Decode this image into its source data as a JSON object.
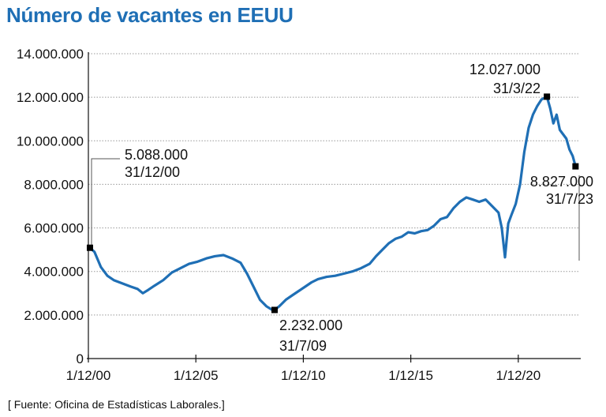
{
  "title": "Número de vacantes en EEUU",
  "source": "[ Fuente: Oficina de Estadísticas Laborales.]",
  "colors": {
    "title": "#1f6fb5",
    "line": "#1f6fb5",
    "grid": "#999999"
  },
  "chart_data": {
    "type": "line",
    "ylim": [
      0,
      14000000
    ],
    "grid": true,
    "yticks": [
      {
        "value": 0,
        "label": "0"
      },
      {
        "value": 2000000,
        "label": "2.000.000"
      },
      {
        "value": 4000000,
        "label": "4.000.000"
      },
      {
        "value": 6000000,
        "label": "6.000.000"
      },
      {
        "value": 8000000,
        "label": "8.000.000"
      },
      {
        "value": 10000000,
        "label": "10.000.000"
      },
      {
        "value": 12000000,
        "label": "12.000.000"
      },
      {
        "value": 14000000,
        "label": "14.000.000"
      }
    ],
    "xticks": [
      {
        "value": 2000.917,
        "label": "1/12/00"
      },
      {
        "value": 2005.917,
        "label": "1/12/05"
      },
      {
        "value": 2010.917,
        "label": "1/12/10"
      },
      {
        "value": 2015.917,
        "label": "1/12/15"
      },
      {
        "value": 2020.917,
        "label": "1/12/20"
      }
    ],
    "series": [
      {
        "x": [
          2000.99,
          2001.2,
          2001.5,
          2001.8,
          2002.1,
          2002.5,
          2002.9,
          2003.2,
          2003.45,
          2003.7,
          2004.0,
          2004.4,
          2004.8,
          2005.2,
          2005.6,
          2006.0,
          2006.4,
          2006.8,
          2007.2,
          2007.6,
          2008.0,
          2008.3,
          2008.6,
          2008.9,
          2009.2,
          2009.45,
          2009.58,
          2009.8,
          2010.1,
          2010.4,
          2010.7,
          2011.0,
          2011.3,
          2011.6,
          2012.0,
          2012.4,
          2012.8,
          2013.2,
          2013.6,
          2014.0,
          2014.3,
          2014.6,
          2014.9,
          2015.2,
          2015.5,
          2015.8,
          2016.1,
          2016.4,
          2016.7,
          2017.0,
          2017.3,
          2017.6,
          2017.9,
          2018.2,
          2018.5,
          2018.8,
          2019.1,
          2019.4,
          2019.7,
          2020.0,
          2020.15,
          2020.3,
          2020.45,
          2020.6,
          2020.8,
          2021.0,
          2021.2,
          2021.4,
          2021.6,
          2021.8,
          2022.0,
          2022.25,
          2022.4,
          2022.55,
          2022.7,
          2022.85,
          2023.0,
          2023.15,
          2023.3,
          2023.45,
          2023.58
        ],
        "y": [
          5088000,
          4900000,
          4200000,
          3800000,
          3600000,
          3450000,
          3300000,
          3200000,
          3000000,
          3150000,
          3350000,
          3600000,
          3950000,
          4150000,
          4350000,
          4450000,
          4600000,
          4700000,
          4750000,
          4600000,
          4400000,
          3900000,
          3300000,
          2700000,
          2400000,
          2250000,
          2232000,
          2400000,
          2700000,
          2900000,
          3100000,
          3300000,
          3500000,
          3650000,
          3750000,
          3800000,
          3900000,
          4000000,
          4150000,
          4350000,
          4700000,
          5000000,
          5300000,
          5500000,
          5600000,
          5800000,
          5750000,
          5850000,
          5900000,
          6100000,
          6400000,
          6500000,
          6900000,
          7200000,
          7400000,
          7300000,
          7200000,
          7300000,
          7000000,
          6700000,
          6000000,
          4650000,
          6200000,
          6600000,
          7100000,
          8000000,
          9500000,
          10600000,
          11200000,
          11600000,
          11900000,
          12027000,
          11500000,
          10800000,
          11200000,
          10500000,
          10300000,
          10100000,
          9600000,
          9300000,
          8827000
        ]
      }
    ],
    "annotations": [
      {
        "x": 2000.99,
        "y": 5088000,
        "value_label": "5.088.000",
        "date_label": "31/12/00"
      },
      {
        "x": 2009.58,
        "y": 2232000,
        "value_label": "2.232.000",
        "date_label": "31/7/09"
      },
      {
        "x": 2022.25,
        "y": 12027000,
        "value_label": "12.027.000",
        "date_label": "31/3/22"
      },
      {
        "x": 2023.58,
        "y": 8827000,
        "value_label": "8.827.000",
        "date_label": "31/7/23"
      }
    ]
  }
}
